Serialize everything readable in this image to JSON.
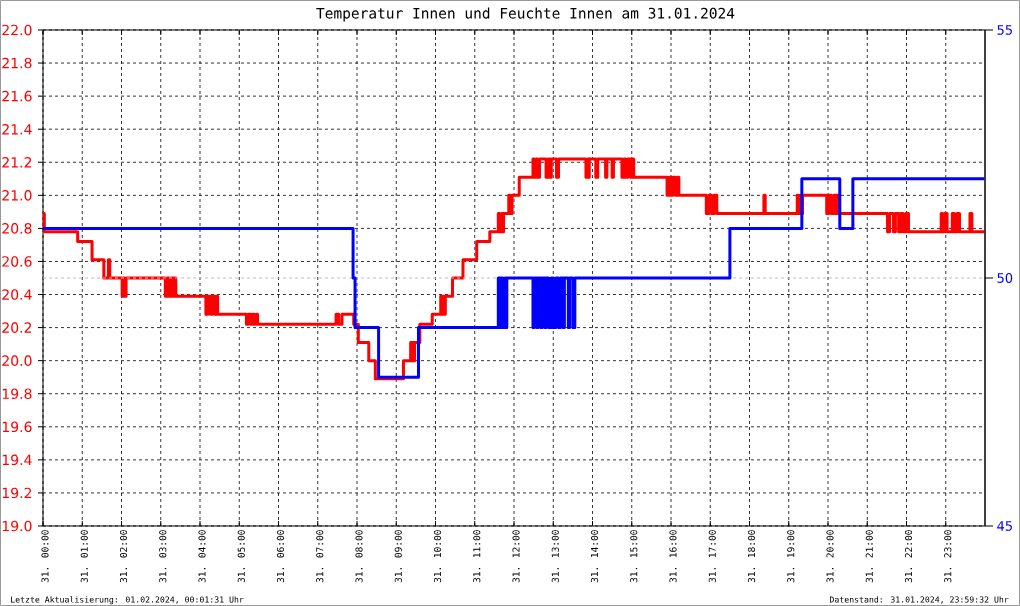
{
  "chart_data": {
    "type": "step",
    "title": "Temperatur Innen und Feuchte Innen am 31.01.2024",
    "annotations": [
      "Letzte Aktualisierung: 01.02.2024, 00:01:31 Uhr",
      "Datenstand: 31.01.2024, 23:59:32 Uhr"
    ],
    "xlim": [
      "2024-01-31T00:00",
      "2024-02-01T00:00"
    ],
    "xticks": [
      {
        "value": "2024-01-31T00:00",
        "label": "31. 00:00"
      },
      {
        "value": "2024-01-31T01:00",
        "label": "31. 01:00"
      },
      {
        "value": "2024-01-31T02:00",
        "label": "31. 02:00"
      },
      {
        "value": "2024-01-31T03:00",
        "label": "31. 03:00"
      },
      {
        "value": "2024-01-31T04:00",
        "label": "31. 04:00"
      },
      {
        "value": "2024-01-31T05:00",
        "label": "31. 05:00"
      },
      {
        "value": "2024-01-31T06:00",
        "label": "31. 06:00"
      },
      {
        "value": "2024-01-31T07:00",
        "label": "31. 07:00"
      },
      {
        "value": "2024-01-31T08:00",
        "label": "31. 08:00"
      },
      {
        "value": "2024-01-31T09:00",
        "label": "31. 09:00"
      },
      {
        "value": "2024-01-31T10:00",
        "label": "31. 10:00"
      },
      {
        "value": "2024-01-31T11:00",
        "label": "31. 11:00"
      },
      {
        "value": "2024-01-31T12:00",
        "label": "31. 12:00"
      },
      {
        "value": "2024-01-31T13:00",
        "label": "31. 13:00"
      },
      {
        "value": "2024-01-31T14:00",
        "label": "31. 14:00"
      },
      {
        "value": "2024-01-31T15:00",
        "label": "31. 15:00"
      },
      {
        "value": "2024-01-31T16:00",
        "label": "31. 16:00"
      },
      {
        "value": "2024-01-31T17:00",
        "label": "31. 17:00"
      },
      {
        "value": "2024-01-31T18:00",
        "label": "31. 18:00"
      },
      {
        "value": "2024-01-31T19:00",
        "label": "31. 19:00"
      },
      {
        "value": "2024-01-31T20:00",
        "label": "31. 20:00"
      },
      {
        "value": "2024-01-31T21:00",
        "label": "31. 21:00"
      },
      {
        "value": "2024-01-31T22:00",
        "label": "31. 22:00"
      },
      {
        "value": "2024-01-31T23:00",
        "label": "31. 23:00"
      }
    ],
    "ylim": [
      19,
      22
    ],
    "yticks": [
      {
        "value": 19,
        "label": "19.0"
      },
      19.2,
      19.4,
      19.6,
      19.8,
      {
        "value": 20,
        "label": "20.0"
      },
      20.2,
      20.4,
      20.6,
      20.8,
      {
        "value": 21,
        "label": "21.0"
      },
      21.2,
      21.4,
      21.6,
      21.8,
      {
        "value": 22,
        "label": "22.0"
      }
    ],
    "y2lim": [
      45,
      55
    ],
    "y2ticks": [
      45,
      50,
      55
    ],
    "grid": true,
    "ref_lines": [
      {
        "axis": "y2",
        "value": 50,
        "color": "#c0c0c0",
        "line_style": "dotted"
      }
    ],
    "series": [
      {
        "color": "#ff0000",
        "x": [
          "2024-01-31T00:00",
          "2024-01-31T00:02",
          "2024-01-31T00:53",
          "2024-01-31T01:15",
          "2024-01-31T01:33",
          "2024-01-31T01:40",
          "2024-01-31T01:42",
          "2024-01-31T02:01",
          "2024-01-31T02:03",
          "2024-01-31T02:04",
          "2024-01-31T02:07",
          "2024-01-31T03:07",
          "2024-01-31T03:10",
          "2024-01-31T03:13",
          "2024-01-31T03:16",
          "2024-01-31T03:19",
          "2024-01-31T03:21",
          "2024-01-31T03:23",
          "2024-01-31T04:09",
          "2024-01-31T04:12",
          "2024-01-31T04:16",
          "2024-01-31T04:19",
          "2024-01-31T04:23",
          "2024-01-31T04:25",
          "2024-01-31T04:27",
          "2024-01-31T05:11",
          "2024-01-31T05:14",
          "2024-01-31T05:18",
          "2024-01-31T05:20",
          "2024-01-31T05:23",
          "2024-01-31T05:26",
          "2024-01-31T05:28",
          "2024-01-31T07:28",
          "2024-01-31T07:32",
          "2024-01-31T07:37",
          "2024-01-31T07:55",
          "2024-01-31T08:02",
          "2024-01-31T08:18",
          "2024-01-31T08:28",
          "2024-01-31T09:11",
          "2024-01-31T09:22",
          "2024-01-31T09:24",
          "2024-01-31T09:26",
          "2024-01-31T09:27",
          "2024-01-31T09:28",
          "2024-01-31T09:36",
          "2024-01-31T09:55",
          "2024-01-31T10:08",
          "2024-01-31T10:10",
          "2024-01-31T10:12",
          "2024-01-31T10:14",
          "2024-01-31T10:15",
          "2024-01-31T10:26",
          "2024-01-31T10:42",
          "2024-01-31T11:03",
          "2024-01-31T11:23",
          "2024-01-31T11:36",
          "2024-01-31T11:38",
          "2024-01-31T11:41",
          "2024-01-31T11:42",
          "2024-01-31T11:44",
          "2024-01-31T11:52",
          "2024-01-31T11:54",
          "2024-01-31T11:57",
          "2024-01-31T12:08",
          "2024-01-31T12:29",
          "2024-01-31T12:31",
          "2024-01-31T12:34",
          "2024-01-31T12:36",
          "2024-01-31T12:39",
          "2024-01-31T12:49",
          "2024-01-31T12:52",
          "2024-01-31T12:55",
          "2024-01-31T12:57",
          "2024-01-31T13:05",
          "2024-01-31T13:08",
          "2024-01-31T13:50",
          "2024-01-31T13:53",
          "2024-01-31T13:54",
          "2024-01-31T13:55",
          "2024-01-31T14:05",
          "2024-01-31T14:08",
          "2024-01-31T14:20",
          "2024-01-31T14:22",
          "2024-01-31T14:30",
          "2024-01-31T14:32",
          "2024-01-31T14:45",
          "2024-01-31T14:48",
          "2024-01-31T14:51",
          "2024-01-31T14:54",
          "2024-01-31T14:58",
          "2024-01-31T15:00",
          "2024-01-31T15:03",
          "2024-01-31T15:54",
          "2024-01-31T15:57",
          "2024-01-31T16:00",
          "2024-01-31T16:03",
          "2024-01-31T16:07",
          "2024-01-31T16:10",
          "2024-01-31T16:12",
          "2024-01-31T16:54",
          "2024-01-31T16:58",
          "2024-01-31T17:02",
          "2024-01-31T17:06",
          "2024-01-31T17:10",
          "2024-01-31T18:22",
          "2024-01-31T18:24",
          "2024-01-31T19:13",
          "2024-01-31T19:15",
          "2024-01-31T19:17",
          "2024-01-31T19:18",
          "2024-01-31T19:21",
          "2024-01-31T19:58",
          "2024-01-31T20:01",
          "2024-01-31T20:05",
          "2024-01-31T20:09",
          "2024-01-31T20:12",
          "2024-01-31T20:13",
          "2024-01-31T20:15",
          "2024-01-31T21:31",
          "2024-01-31T21:34",
          "2024-01-31T21:40",
          "2024-01-31T21:43",
          "2024-01-31T21:48",
          "2024-01-31T21:51",
          "2024-01-31T21:55",
          "2024-01-31T21:59",
          "2024-01-31T22:03",
          "2024-01-31T22:53",
          "2024-01-31T22:55",
          "2024-01-31T22:58",
          "2024-01-31T23:02",
          "2024-01-31T23:10",
          "2024-01-31T23:13",
          "2024-01-31T23:17",
          "2024-01-31T23:21",
          "2024-01-31T23:37",
          "2024-01-31T23:40",
          "2024-01-31T23:59"
        ],
        "values": [
          20.89,
          20.78,
          20.72,
          20.61,
          20.5,
          20.61,
          20.5,
          20.39,
          20.5,
          20.39,
          20.5,
          20.39,
          20.5,
          20.39,
          20.5,
          20.39,
          20.5,
          20.39,
          20.28,
          20.39,
          20.28,
          20.39,
          20.28,
          20.39,
          20.28,
          20.22,
          20.28,
          20.22,
          20.28,
          20.22,
          20.28,
          20.22,
          20.28,
          20.22,
          20.28,
          20.22,
          20.11,
          20.0,
          19.89,
          20.0,
          20.11,
          20.0,
          20.11,
          20.0,
          20.11,
          20.22,
          20.28,
          20.39,
          20.28,
          20.39,
          20.28,
          20.39,
          20.5,
          20.61,
          20.72,
          20.78,
          20.89,
          20.78,
          20.89,
          20.78,
          20.89,
          21.0,
          20.89,
          21.0,
          21.11,
          21.22,
          21.11,
          21.22,
          21.11,
          21.22,
          21.11,
          21.22,
          21.11,
          21.22,
          21.11,
          21.22,
          21.11,
          21.22,
          21.11,
          21.22,
          21.11,
          21.22,
          21.11,
          21.22,
          21.11,
          21.22,
          21.11,
          21.22,
          21.11,
          21.22,
          21.11,
          21.22,
          21.11,
          21.0,
          21.11,
          21.0,
          21.11,
          21.0,
          21.11,
          21.0,
          20.89,
          21.0,
          20.89,
          21.0,
          20.89,
          21.0,
          20.89,
          21.0,
          20.89,
          21.0,
          20.89,
          21.0,
          20.89,
          21.0,
          20.89,
          21.0,
          20.89,
          21.0,
          20.89,
          20.78,
          20.89,
          20.78,
          20.89,
          20.78,
          20.89,
          20.78,
          20.89,
          20.78,
          20.89,
          20.78,
          20.89,
          20.78,
          20.89,
          20.78,
          20.89,
          20.78,
          20.89,
          20.78,
          20.78
        ]
      },
      {
        "color": "#0000ff",
        "axis": "y2",
        "x": [
          "2024-01-31T00:00",
          "2024-01-31T07:54",
          "2024-01-31T07:57",
          "2024-01-31T08:33",
          "2024-01-31T09:34",
          "2024-01-31T11:36",
          "2024-01-31T11:39",
          "2024-01-31T11:41",
          "2024-01-31T11:43",
          "2024-01-31T11:46",
          "2024-01-31T11:47",
          "2024-01-31T11:49",
          "2024-01-31T12:29",
          "2024-01-31T12:31",
          "2024-01-31T12:35",
          "2024-01-31T12:37",
          "2024-01-31T12:41",
          "2024-01-31T12:43",
          "2024-01-31T12:47",
          "2024-01-31T12:49",
          "2024-01-31T12:53",
          "2024-01-31T12:57",
          "2024-01-31T13:00",
          "2024-01-31T13:04",
          "2024-01-31T13:08",
          "2024-01-31T13:11",
          "2024-01-31T13:15",
          "2024-01-31T13:17",
          "2024-01-31T13:23",
          "2024-01-31T13:25",
          "2024-01-31T13:30",
          "2024-01-31T13:33",
          "2024-01-31T17:30",
          "2024-01-31T19:20",
          "2024-01-31T20:18",
          "2024-01-31T20:38",
          "2024-01-31T23:59"
        ],
        "values": [
          51,
          50,
          49,
          48,
          49,
          50,
          49,
          50,
          49,
          50,
          49,
          50,
          49,
          50,
          49,
          50,
          49,
          50,
          49,
          50,
          49,
          50,
          49,
          50,
          49,
          50,
          49,
          50,
          49,
          50,
          49,
          50,
          51,
          52,
          51,
          52,
          52
        ]
      }
    ]
  }
}
